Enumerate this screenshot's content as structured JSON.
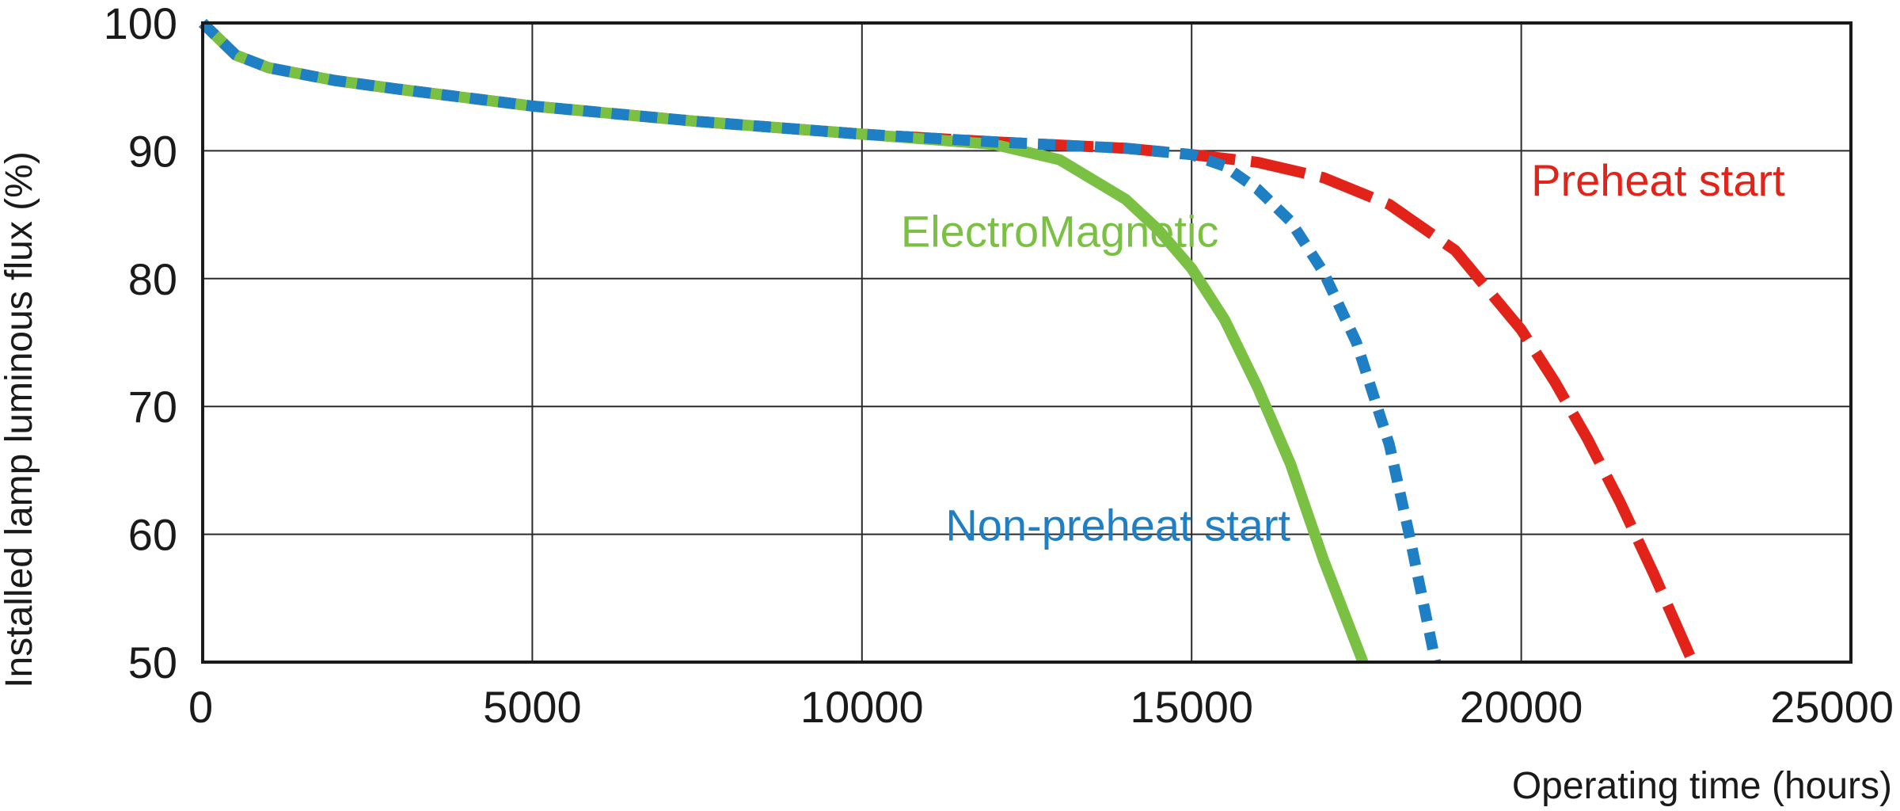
{
  "chart_data": {
    "type": "line",
    "title": "",
    "xlabel": "Operating time (hours)",
    "ylabel": "Installed lamp luminous flux  (%)",
    "xlim": [
      0,
      25000
    ],
    "ylim": [
      50,
      100
    ],
    "xticks": [
      0,
      5000,
      10000,
      15000,
      20000,
      25000
    ],
    "yticks": [
      50,
      60,
      70,
      80,
      90,
      100
    ],
    "grid": true,
    "legend": "inline labels",
    "series": [
      {
        "name": "ElectroMagnetic",
        "color": "#7ac143",
        "style": "solid",
        "x": [
          0,
          500,
          1000,
          2000,
          3000,
          5000,
          7500,
          10000,
          12000,
          13000,
          14000,
          14500,
          15000,
          15500,
          16000,
          16500,
          17000,
          17600
        ],
        "y": [
          100,
          97.5,
          96.5,
          95.5,
          94.8,
          93.5,
          92.3,
          91.3,
          90.5,
          89.3,
          86.2,
          83.8,
          80.8,
          76.8,
          71.5,
          65.5,
          58.0,
          50.0
        ]
      },
      {
        "name": "Non-preheat start",
        "color": "#1f7fc4",
        "style": "short-dash",
        "x": [
          0,
          500,
          1000,
          2000,
          3000,
          5000,
          7500,
          10000,
          12000,
          14000,
          15000,
          15500,
          16000,
          16500,
          17000,
          17500,
          18000,
          18300,
          18700
        ],
        "y": [
          100,
          97.5,
          96.5,
          95.5,
          94.8,
          93.5,
          92.3,
          91.3,
          90.7,
          90.2,
          89.7,
          88.8,
          87.0,
          84.5,
          80.5,
          75.0,
          67.0,
          60.0,
          50.0
        ]
      },
      {
        "name": "Preheat start",
        "color": "#e2231a",
        "style": "long-dash",
        "x": [
          0,
          500,
          1000,
          2000,
          3000,
          5000,
          7500,
          10000,
          12000,
          14000,
          15000,
          16000,
          17000,
          18000,
          19000,
          20000,
          20500,
          21000,
          21500,
          22000,
          22600
        ],
        "y": [
          100,
          97.5,
          96.5,
          95.5,
          94.8,
          93.5,
          92.3,
          91.3,
          90.7,
          90.2,
          89.7,
          89.1,
          87.9,
          85.8,
          82.2,
          76.0,
          72.0,
          67.5,
          62.5,
          57.0,
          50.0
        ]
      }
    ],
    "annotations": [
      {
        "text": "ElectroMagnetic",
        "series": 0,
        "x": 13000,
        "y": 82.5,
        "anchor": "middle"
      },
      {
        "text": "Non-preheat start",
        "series": 1,
        "x": 16500,
        "y": 59.5,
        "anchor": "end"
      },
      {
        "text": "Preheat start",
        "series": 2,
        "x": 24000,
        "y": 86.5,
        "anchor": "end"
      }
    ]
  }
}
